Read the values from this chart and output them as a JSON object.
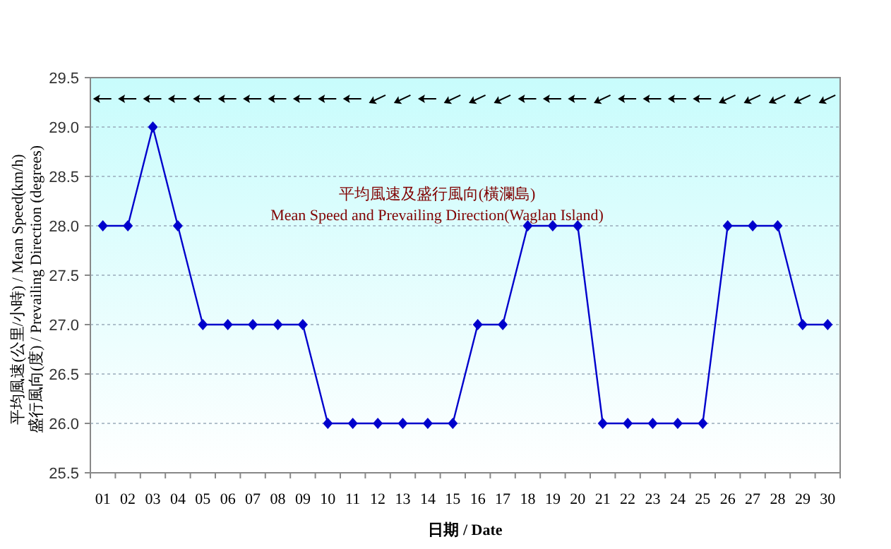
{
  "chart_data": {
    "type": "line",
    "title": "平均風速及盛行風向(橫瀾島)",
    "subtitle": "Mean Speed and Prevailing Direction(Waglan Island)",
    "xlabel": "日期 / Date",
    "ylabel": "平均風速(公里/小時) / Mean Speed(km/h)\n盛行風向(度) / Prevailing Direction (degrees)",
    "categories": [
      "01",
      "02",
      "03",
      "04",
      "05",
      "06",
      "07",
      "08",
      "09",
      "10",
      "11",
      "12",
      "13",
      "14",
      "15",
      "16",
      "17",
      "18",
      "19",
      "20",
      "21",
      "22",
      "23",
      "24",
      "25",
      "26",
      "27",
      "28",
      "29",
      "30"
    ],
    "series": [
      {
        "color": "#0000cc",
        "values": [
          28,
          28,
          29,
          28,
          27,
          27,
          27,
          27,
          27,
          26,
          26,
          26,
          26,
          26,
          26,
          27,
          27,
          28,
          28,
          28,
          26,
          26,
          26,
          26,
          26,
          28,
          28,
          28,
          27,
          27
        ]
      }
    ],
    "ylim": [
      25.5,
      29.5
    ],
    "yticks": [
      {
        "value": 25.5,
        "label": "25.5"
      },
      {
        "value": 26,
        "label": "26.0"
      },
      {
        "value": 26.5,
        "label": "26.5"
      },
      {
        "value": 27,
        "label": "27.0"
      },
      {
        "value": 27.5,
        "label": "27.5"
      },
      {
        "value": 28,
        "label": "28.0"
      },
      {
        "value": 28.5,
        "label": "28.5"
      },
      {
        "value": 29,
        "label": "29.0"
      },
      {
        "value": 29.5,
        "label": "29.5"
      }
    ],
    "grid": "y",
    "marker": "diamond",
    "line_style": "solid"
  }
}
